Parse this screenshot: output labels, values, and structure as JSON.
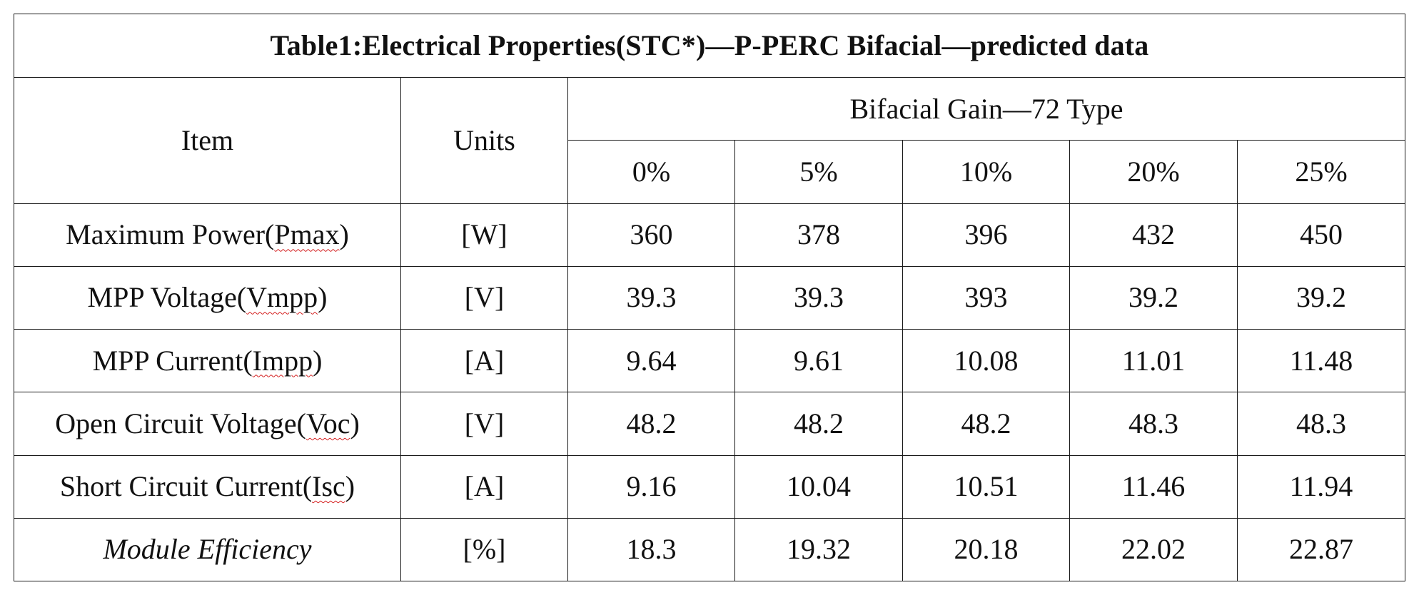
{
  "table": {
    "title": "Table1:Electrical Properties(STC*)—P-PERC  Bifacial—predicted data",
    "header": {
      "item": "Item",
      "units": "Units",
      "group": "Bifacial Gain—72 Type",
      "gains": [
        "0%",
        "5%",
        "10%",
        "20%",
        "25%"
      ]
    },
    "rows": [
      {
        "item_prefix": "Maximum Power(",
        "item_abbr": "Pmax",
        "item_suffix": ")",
        "unit": "[W]",
        "values": [
          "360",
          "378",
          "396",
          "432",
          "450"
        ]
      },
      {
        "item_prefix": "MPP Voltage(",
        "item_abbr": "Vmpp",
        "item_suffix": ")",
        "unit": "[V]",
        "values": [
          "39.3",
          "39.3",
          "393",
          "39.2",
          "39.2"
        ]
      },
      {
        "item_prefix": "MPP Current(",
        "item_abbr": "Impp",
        "item_suffix": ")",
        "unit": "[A]",
        "values": [
          "9.64",
          "9.61",
          "10.08",
          "11.01",
          "11.48"
        ]
      },
      {
        "item_prefix": "Open Circuit Voltage(",
        "item_abbr": "Voc",
        "item_suffix": ")",
        "unit": "[V]",
        "values": [
          "48.2",
          "48.2",
          "48.2",
          "48.3",
          "48.3"
        ]
      },
      {
        "item_prefix": "Short Circuit Current(",
        "item_abbr": "Isc",
        "item_suffix": ")",
        "unit": "[A]",
        "values": [
          "9.16",
          "10.04",
          "10.51",
          "11.46",
          "11.94"
        ]
      },
      {
        "item_prefix": "Module Efficiency",
        "item_abbr": "",
        "item_suffix": "",
        "unit": "[%]",
        "values": [
          "18.3",
          "19.32",
          "20.18",
          "22.02",
          "22.87"
        ]
      }
    ]
  }
}
